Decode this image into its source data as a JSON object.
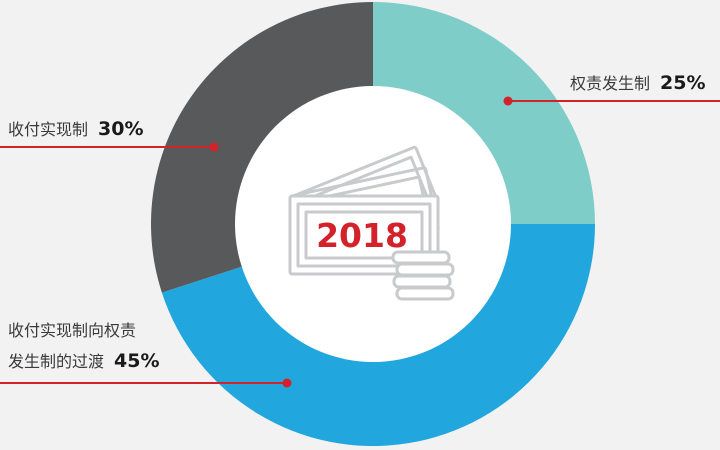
{
  "chart_data": {
    "type": "pie",
    "categories": [
      "权责发生制",
      "收付实现制向权责发生制的过渡",
      "收付实现制"
    ],
    "values": [
      25,
      45,
      30
    ],
    "colors": [
      "#7fcdc8",
      "#22a6de",
      "#58595b"
    ],
    "center_label": "2018",
    "center_label_color": "#d3222a",
    "leader_line_color": "#d3222a",
    "labels": {
      "accrual": {
        "text": "权责发生制",
        "pct": "25%"
      },
      "transition": {
        "line1": "收付实现制向权责",
        "line2": "发生制的过渡",
        "pct": "45%"
      },
      "cash": {
        "text": "收付实现制",
        "pct": "30%"
      }
    },
    "center_icon": "money-stack-icon"
  }
}
